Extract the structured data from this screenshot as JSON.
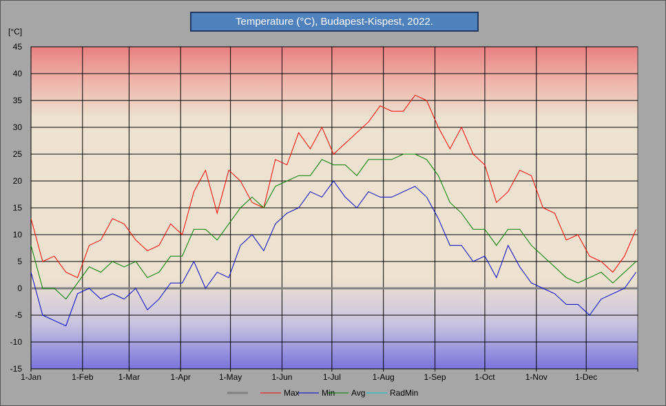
{
  "chart_data": {
    "type": "line",
    "title": "Temperature (°C), Budapest-Kispest, 2022.",
    "ylabel": "[°C]",
    "xlabel": "",
    "ylim": [
      -15,
      45
    ],
    "yticks": [
      45,
      40,
      35,
      30,
      25,
      20,
      15,
      10,
      5,
      0,
      -5,
      -10,
      -15
    ],
    "x_range_days": [
      0,
      365
    ],
    "x_ticks": [
      {
        "label": "1-Jan",
        "day": 0
      },
      {
        "label": "1-Feb",
        "day": 31
      },
      {
        "label": "1-Mar",
        "day": 59
      },
      {
        "label": "1-Apr",
        "day": 90
      },
      {
        "label": "1-May",
        "day": 120
      },
      {
        "label": "1-Jun",
        "day": 151
      },
      {
        "label": "1-Jul",
        "day": 181
      },
      {
        "label": "1-Aug",
        "day": 212
      },
      {
        "label": "1-Sep",
        "day": 243
      },
      {
        "label": "1-Oct",
        "day": 273
      },
      {
        "label": "1-Nov",
        "day": 304
      },
      {
        "label": "1-Dec",
        "day": 334
      }
    ],
    "grid": true,
    "legend_position": "bottom",
    "legend": [
      {
        "name": "",
        "color": "#808080"
      },
      {
        "name": "Max",
        "color": "#ff0000"
      },
      {
        "name": "Min",
        "color": "#0000cc"
      },
      {
        "name": "Avg",
        "color": "#008000"
      },
      {
        "name": "RadMin",
        "color": "#00c8c8"
      }
    ],
    "series_step_days": 7,
    "series": [
      {
        "name": "Max",
        "color": "#ff0000",
        "values": [
          13,
          5,
          6,
          3,
          2,
          8,
          9,
          13,
          12,
          9,
          7,
          8,
          12,
          10,
          18,
          22,
          14,
          22,
          20,
          16,
          15,
          24,
          23,
          29,
          26,
          30,
          25,
          27,
          29,
          31,
          34,
          33,
          33,
          36,
          35,
          30,
          26,
          30,
          25,
          23,
          16,
          18,
          22,
          21,
          15,
          14,
          9,
          10,
          6,
          5,
          3,
          6,
          11
        ]
      },
      {
        "name": "Min",
        "color": "#0000cc",
        "values": [
          3,
          -5,
          -6,
          -7,
          -1,
          0,
          -2,
          -1,
          -2,
          0,
          -4,
          -2,
          1,
          1,
          5,
          0,
          3,
          2,
          8,
          10,
          7,
          12,
          14,
          15,
          18,
          17,
          20,
          17,
          15,
          18,
          17,
          17,
          18,
          19,
          17,
          13,
          8,
          8,
          5,
          6,
          2,
          8,
          4,
          1,
          0,
          -1,
          -3,
          -3,
          -5,
          -2,
          -1,
          0,
          3
        ]
      },
      {
        "name": "Avg",
        "color": "#008000",
        "values": [
          8,
          0,
          0,
          -2,
          1,
          4,
          3,
          5,
          4,
          5,
          2,
          3,
          6,
          6,
          11,
          11,
          9,
          12,
          15,
          17,
          15,
          19,
          20,
          21,
          21,
          24,
          23,
          23,
          21,
          24,
          24,
          24,
          25,
          25,
          24,
          21,
          16,
          14,
          11,
          11,
          8,
          11,
          11,
          8,
          6,
          4,
          2,
          1,
          2,
          3,
          1,
          3,
          5
        ]
      }
    ]
  }
}
